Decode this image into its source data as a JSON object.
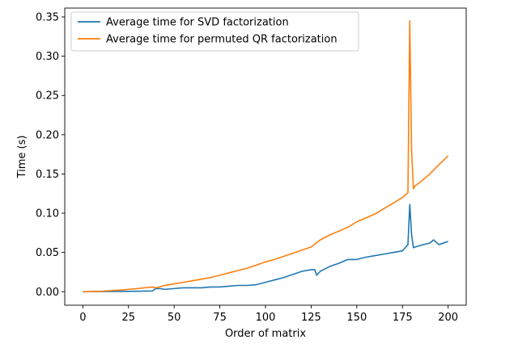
{
  "chart_data": {
    "type": "line",
    "title": "",
    "xlabel": "Order of matrix",
    "ylabel": "Time (s)",
    "xlim": [
      -9.9,
      209.9
    ],
    "ylim": [
      -0.0172,
      0.3613
    ],
    "xticks": [
      0,
      25,
      50,
      75,
      100,
      125,
      150,
      175,
      200
    ],
    "yticks": [
      0.0,
      0.05,
      0.1,
      0.15,
      0.2,
      0.25,
      0.3,
      0.35
    ],
    "ytick_labels": [
      "0.00",
      "0.05",
      "0.10",
      "0.15",
      "0.20",
      "0.25",
      "0.30",
      "0.35"
    ],
    "grid": false,
    "legend_position": "top-left",
    "series": [
      {
        "name": "Average time for SVD factorization",
        "color": "#1f77b4",
        "x": [
          0,
          10,
          20,
          30,
          38,
          40,
          42,
          45,
          50,
          55,
          60,
          65,
          70,
          75,
          80,
          85,
          90,
          95,
          100,
          105,
          110,
          115,
          120,
          125,
          127,
          128,
          130,
          135,
          140,
          145,
          150,
          155,
          160,
          165,
          170,
          175,
          178,
          179,
          180,
          181,
          182,
          185,
          190,
          192,
          195,
          200
        ],
        "y": [
          0.0,
          0.0002,
          0.0004,
          0.0006,
          0.001,
          0.004,
          0.004,
          0.003,
          0.004,
          0.005,
          0.005,
          0.005,
          0.006,
          0.006,
          0.007,
          0.008,
          0.008,
          0.009,
          0.012,
          0.015,
          0.018,
          0.022,
          0.026,
          0.028,
          0.028,
          0.021,
          0.026,
          0.032,
          0.036,
          0.041,
          0.041,
          0.044,
          0.046,
          0.048,
          0.05,
          0.052,
          0.06,
          0.111,
          0.073,
          0.056,
          0.057,
          0.059,
          0.062,
          0.066,
          0.06,
          0.064
        ]
      },
      {
        "name": "Average time for permuted QR factorization",
        "color": "#ff7f0e",
        "x": [
          0,
          10,
          20,
          30,
          38,
          40,
          45,
          50,
          55,
          60,
          65,
          70,
          75,
          80,
          85,
          90,
          95,
          100,
          105,
          110,
          115,
          120,
          125,
          130,
          135,
          140,
          145,
          150,
          155,
          160,
          165,
          170,
          175,
          178,
          179,
          180,
          181,
          182,
          185,
          190,
          195,
          200
        ],
        "y": [
          0.0,
          0.0005,
          0.002,
          0.004,
          0.006,
          0.005,
          0.008,
          0.01,
          0.012,
          0.014,
          0.016,
          0.018,
          0.021,
          0.024,
          0.027,
          0.03,
          0.034,
          0.038,
          0.041,
          0.045,
          0.049,
          0.053,
          0.057,
          0.066,
          0.072,
          0.077,
          0.082,
          0.089,
          0.094,
          0.099,
          0.106,
          0.113,
          0.12,
          0.126,
          0.345,
          0.18,
          0.131,
          0.135,
          0.14,
          0.15,
          0.162,
          0.173
        ]
      }
    ]
  }
}
